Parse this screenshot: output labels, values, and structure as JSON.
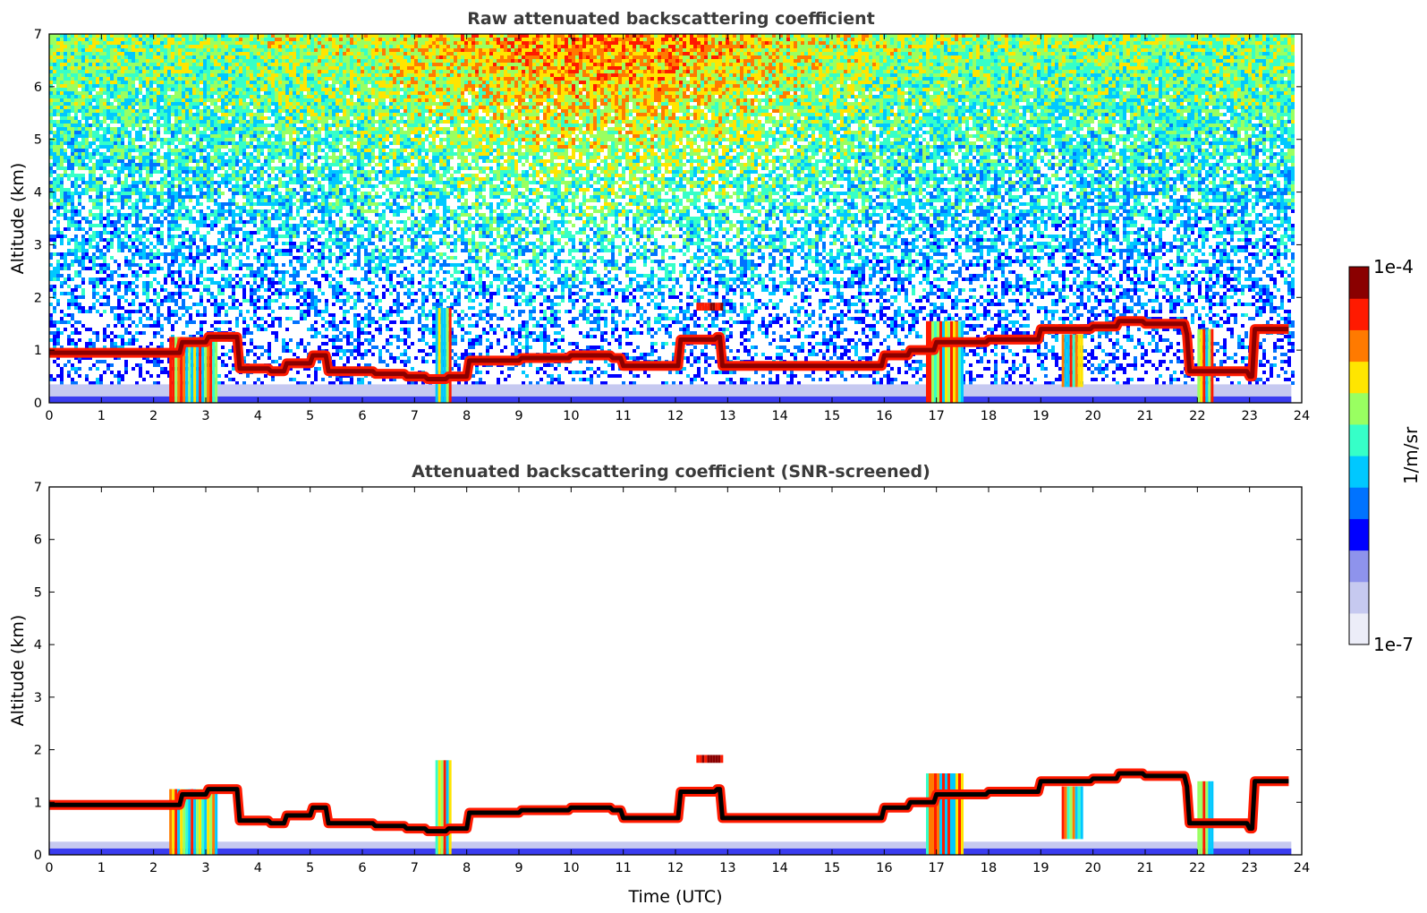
{
  "chart_data": [
    {
      "type": "heatmap",
      "title": "Raw attenuated backscattering coefficient",
      "xlabel": "",
      "ylabel": "Altitude (km)",
      "xlim": [
        0,
        24
      ],
      "ylim": [
        0,
        7
      ],
      "xticks": [
        "0",
        "1",
        "2",
        "3",
        "4",
        "5",
        "6",
        "7",
        "8",
        "9",
        "10",
        "11",
        "12",
        "13",
        "14",
        "15",
        "16",
        "17",
        "18",
        "19",
        "20",
        "21",
        "22",
        "23",
        "24"
      ],
      "yticks": [
        "0",
        "1",
        "2",
        "3",
        "4",
        "5",
        "6",
        "7"
      ],
      "data_end_hour": 23.8,
      "noise_background": true,
      "cloud_layer_altitude_km": [
        [
          0,
          0.95
        ],
        [
          1,
          0.95
        ],
        [
          2,
          0.95
        ],
        [
          2.5,
          1.15
        ],
        [
          3,
          1.25
        ],
        [
          3.5,
          1.25
        ],
        [
          3.6,
          0.65
        ],
        [
          4.2,
          0.6
        ],
        [
          4.5,
          0.75
        ],
        [
          5,
          0.9
        ],
        [
          5.3,
          0.6
        ],
        [
          6,
          0.6
        ],
        [
          6.2,
          0.55
        ],
        [
          6.8,
          0.5
        ],
        [
          7.2,
          0.45
        ],
        [
          7.6,
          0.5
        ],
        [
          8,
          0.8
        ],
        [
          9,
          0.85
        ],
        [
          10,
          0.9
        ],
        [
          10.8,
          0.85
        ],
        [
          11,
          0.7
        ],
        [
          12,
          0.7
        ],
        [
          12.1,
          1.2
        ],
        [
          12.8,
          1.25
        ],
        [
          12.9,
          0.7
        ],
        [
          14,
          0.7
        ],
        [
          15,
          0.7
        ],
        [
          15.6,
          0.7
        ],
        [
          16,
          0.9
        ],
        [
          16.5,
          1.0
        ],
        [
          17,
          1.15
        ],
        [
          18,
          1.2
        ],
        [
          19,
          1.4
        ],
        [
          20,
          1.45
        ],
        [
          20.5,
          1.55
        ],
        [
          21,
          1.5
        ],
        [
          21.8,
          1.3
        ],
        [
          21.85,
          0.6
        ],
        [
          23,
          0.5
        ],
        [
          23.1,
          1.4
        ],
        [
          23.8,
          1.35
        ]
      ],
      "features": [
        {
          "hours": [
            2.3,
            3.2
          ],
          "altitude_km": [
            0,
            1.25
          ],
          "kind": "precipitation"
        },
        {
          "hours": [
            7.4,
            7.7
          ],
          "altitude_km": [
            0,
            1.8
          ],
          "kind": "precipitation"
        },
        {
          "hours": [
            12.4,
            12.9
          ],
          "altitude_km": [
            1.75,
            1.9
          ],
          "kind": "cloud"
        },
        {
          "hours": [
            16.8,
            17.5
          ],
          "altitude_km": [
            0,
            1.55
          ],
          "kind": "precipitation"
        },
        {
          "hours": [
            19.4,
            19.8
          ],
          "altitude_km": [
            0.3,
            1.3
          ],
          "kind": "precipitation"
        },
        {
          "hours": [
            22.0,
            22.3
          ],
          "altitude_km": [
            0,
            1.4
          ],
          "kind": "precipitation"
        }
      ]
    },
    {
      "type": "heatmap",
      "title": "Attenuated backscattering coefficient (SNR-screened)",
      "xlabel": "Time (UTC)",
      "ylabel": "Altitude (km)",
      "xlim": [
        0,
        24
      ],
      "ylim": [
        0,
        7
      ],
      "xticks": [
        "0",
        "1",
        "2",
        "3",
        "4",
        "5",
        "6",
        "7",
        "8",
        "9",
        "10",
        "11",
        "12",
        "13",
        "14",
        "15",
        "16",
        "17",
        "18",
        "19",
        "20",
        "21",
        "22",
        "23",
        "24"
      ],
      "yticks": [
        "0",
        "1",
        "2",
        "3",
        "4",
        "5",
        "6",
        "7"
      ],
      "data_end_hour": 23.8,
      "noise_background": false,
      "same_features_as_panel": 0
    }
  ],
  "colorbar": {
    "label": "1/m/sr",
    "max_label": "1e-4",
    "min_label": "1e-7",
    "colormap": [
      "#ecedf8",
      "#c6c9f0",
      "#8e93ec",
      "#0000ff",
      "#0073ff",
      "#00c8ff",
      "#36ffc8",
      "#99ff61",
      "#ffe500",
      "#ff7a00",
      "#ff1a00",
      "#8a0000"
    ]
  }
}
